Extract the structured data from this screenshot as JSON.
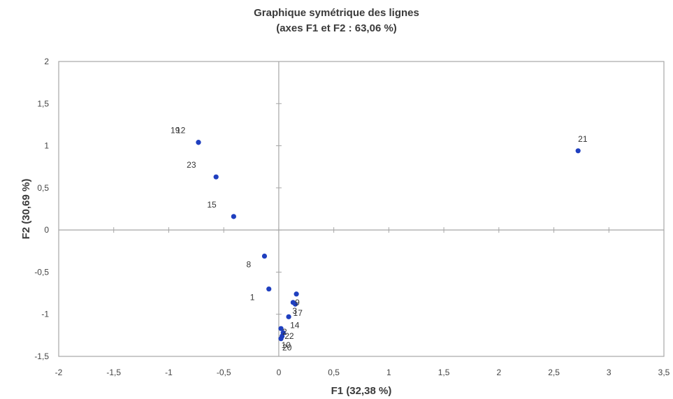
{
  "chart_data": {
    "type": "scatter",
    "title": "Graphique symétrique des lignes",
    "subtitle": "(axes F1 et F2 : 63,06 %)",
    "xlabel": "F1 (32,38 %)",
    "ylabel": "F2 (30,69 %)",
    "xlim": [
      -2,
      3.5
    ],
    "ylim": [
      -1.5,
      2
    ],
    "x_ticks": [
      "-2",
      "-1,5",
      "-1",
      "-0,5",
      "0",
      "0,5",
      "1",
      "1,5",
      "2",
      "2,5",
      "3",
      "3,5"
    ],
    "y_ticks": [
      "-1,5",
      "-1",
      "-0,5",
      "0",
      "0,5",
      "1",
      "1,5",
      "2"
    ],
    "grid": false,
    "color": "#1f3fbf",
    "points": [
      {
        "label": "12",
        "x": -0.73,
        "y": 1.04
      },
      {
        "label": "19",
        "x": -0.73,
        "y": 1.04
      },
      {
        "label": "23",
        "x": -0.57,
        "y": 0.63
      },
      {
        "label": "15",
        "x": -0.41,
        "y": 0.16
      },
      {
        "label": "21",
        "x": 2.72,
        "y": 0.94
      },
      {
        "label": "8",
        "x": -0.13,
        "y": -0.31
      },
      {
        "label": "1",
        "x": -0.09,
        "y": -0.7
      },
      {
        "label": "9",
        "x": 0.16,
        "y": -0.76
      },
      {
        "label": "3",
        "x": 0.13,
        "y": -0.86
      },
      {
        "label": "17",
        "x": 0.15,
        "y": -0.88
      },
      {
        "label": "14",
        "x": 0.09,
        "y": -1.03
      },
      {
        "label": "2",
        "x": 0.02,
        "y": -1.17
      },
      {
        "label": "22",
        "x": 0.04,
        "y": -1.22
      },
      {
        "label": "10",
        "x": 0.03,
        "y": -1.26
      },
      {
        "label": "20",
        "x": 0.02,
        "y": -1.29
      }
    ]
  }
}
